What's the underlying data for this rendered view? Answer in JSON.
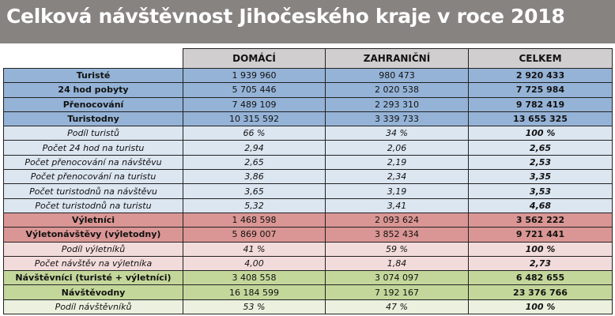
{
  "title": "Celková návštěvnost Jihočeského kraje v roce 2018",
  "colors": {
    "title_bg": "#878381",
    "header_bg": "#d0cece",
    "blue": "#95b3d7",
    "light_blue": "#dce6f1",
    "red": "#da9694",
    "light_red": "#f2dcdb",
    "green": "#c4d79b",
    "light_green": "#ebf1de"
  },
  "columns": [
    "DOMÁCÍ",
    "ZAHRANIČNÍ",
    "CELKEM"
  ],
  "rows": [
    {
      "style": "b-blue",
      "label": "Turisté",
      "values": [
        "1 939 960",
        "980 473",
        "2 920 433"
      ]
    },
    {
      "style": "b-blue",
      "label": "24 hod pobyty",
      "values": [
        "5 705 446",
        "2 020 538",
        "7 725 984"
      ]
    },
    {
      "style": "b-blue",
      "label": "Přenocování",
      "values": [
        "7 489 109",
        "2 293 310",
        "9 782 419"
      ]
    },
    {
      "style": "b-blue",
      "label": "Turistodny",
      "values": [
        "10 315 592",
        "3 339 733",
        "13 655 325"
      ]
    },
    {
      "style": "i-blue",
      "label": "Podíl turistů",
      "values": [
        "66 %",
        "34 %",
        "100 %"
      ]
    },
    {
      "style": "i-blue",
      "label": "Počet 24 hod na turistu",
      "values": [
        "2,94",
        "2,06",
        "2,65"
      ]
    },
    {
      "style": "i-blue",
      "label": "Počet přenocování na návštěvu",
      "values": [
        "2,65",
        "2,19",
        "2,53"
      ]
    },
    {
      "style": "i-blue",
      "label": "Počet přenocování na turistu",
      "values": [
        "3,86",
        "2,34",
        "3,35"
      ]
    },
    {
      "style": "i-blue",
      "label": "Počet turistodnů na návštěvu",
      "values": [
        "3,65",
        "3,19",
        "3,53"
      ]
    },
    {
      "style": "i-blue",
      "label": "Počet turistodnů na turistu",
      "values": [
        "5,32",
        "3,41",
        "4,68"
      ]
    },
    {
      "style": "b-red",
      "label": "Výletníci",
      "values": [
        "1 468 598",
        "2 093 624",
        "3 562 222"
      ]
    },
    {
      "style": "b-red",
      "label": "Výletonávštěvy (výletodny)",
      "values": [
        "5 869 007",
        "3 852 434",
        "9 721 441"
      ]
    },
    {
      "style": "i-red",
      "label": "Podíl výletníků",
      "values": [
        "41 %",
        "59 %",
        "100 %"
      ]
    },
    {
      "style": "i-red",
      "label": "Počet návštěv na výletníka",
      "values": [
        "4,00",
        "1,84",
        "2,73"
      ]
    },
    {
      "style": "b-green",
      "label": "Návštěvníci (turisté + výletníci)",
      "values": [
        "3 408 558",
        "3 074 097",
        "6 482 655"
      ]
    },
    {
      "style": "b-green",
      "label": "Návštěvodny",
      "values": [
        "16 184 599",
        "7 192 167",
        "23 376 766"
      ]
    },
    {
      "style": "i-green",
      "label": "Podíl návštěvníků",
      "values": [
        "53 %",
        "47 %",
        "100 %"
      ]
    }
  ]
}
